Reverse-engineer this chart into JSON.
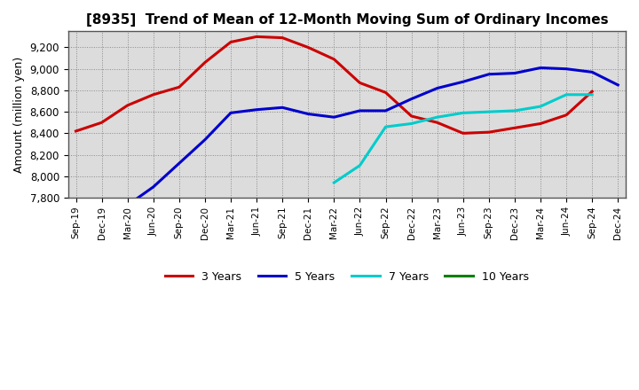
{
  "title": "[8935]  Trend of Mean of 12-Month Moving Sum of Ordinary Incomes",
  "ylabel": "Amount (million yen)",
  "background_color": "#ffffff",
  "plot_bg_color": "#dcdcdc",
  "ylim": [
    7800,
    9350
  ],
  "yticks": [
    7800,
    8000,
    8200,
    8400,
    8600,
    8800,
    9000,
    9200
  ],
  "x_labels": [
    "Sep-19",
    "Dec-19",
    "Mar-20",
    "Jun-20",
    "Sep-20",
    "Dec-20",
    "Mar-21",
    "Jun-21",
    "Sep-21",
    "Dec-21",
    "Mar-22",
    "Jun-22",
    "Sep-22",
    "Dec-22",
    "Mar-23",
    "Jun-23",
    "Sep-23",
    "Dec-23",
    "Mar-24",
    "Jun-24",
    "Sep-24",
    "Dec-24"
  ],
  "series": {
    "3 Years": {
      "color": "#cc0000",
      "data_x": [
        0,
        1,
        2,
        3,
        4,
        5,
        6,
        7,
        8,
        9,
        10,
        11,
        12,
        13,
        14,
        15,
        16,
        17,
        18,
        19,
        20
      ],
      "data_y": [
        8420,
        8500,
        8660,
        8760,
        8830,
        9060,
        9250,
        9300,
        9290,
        9200,
        9090,
        8870,
        8780,
        8560,
        8500,
        8400,
        8410,
        8450,
        8490,
        8570,
        8790
      ]
    },
    "5 Years": {
      "color": "#0000cc",
      "data_x": [
        2,
        3,
        4,
        5,
        6,
        7,
        8,
        9,
        10,
        11,
        12,
        13,
        14,
        15,
        16,
        17,
        18,
        19,
        20,
        21
      ],
      "data_y": [
        7730,
        7900,
        8120,
        8340,
        8590,
        8620,
        8640,
        8580,
        8550,
        8610,
        8610,
        8720,
        8820,
        8880,
        8950,
        8960,
        9010,
        9000,
        8970,
        8850
      ]
    },
    "7 Years": {
      "color": "#00cccc",
      "data_x": [
        10,
        11,
        12,
        13,
        14,
        15,
        16,
        17,
        18,
        19,
        20
      ],
      "data_y": [
        7940,
        8100,
        8460,
        8490,
        8550,
        8590,
        8600,
        8610,
        8650,
        8760,
        8760
      ]
    },
    "10 Years": {
      "color": "#008000",
      "data_x": [],
      "data_y": []
    }
  },
  "legend_entries": [
    "3 Years",
    "5 Years",
    "7 Years",
    "10 Years"
  ]
}
